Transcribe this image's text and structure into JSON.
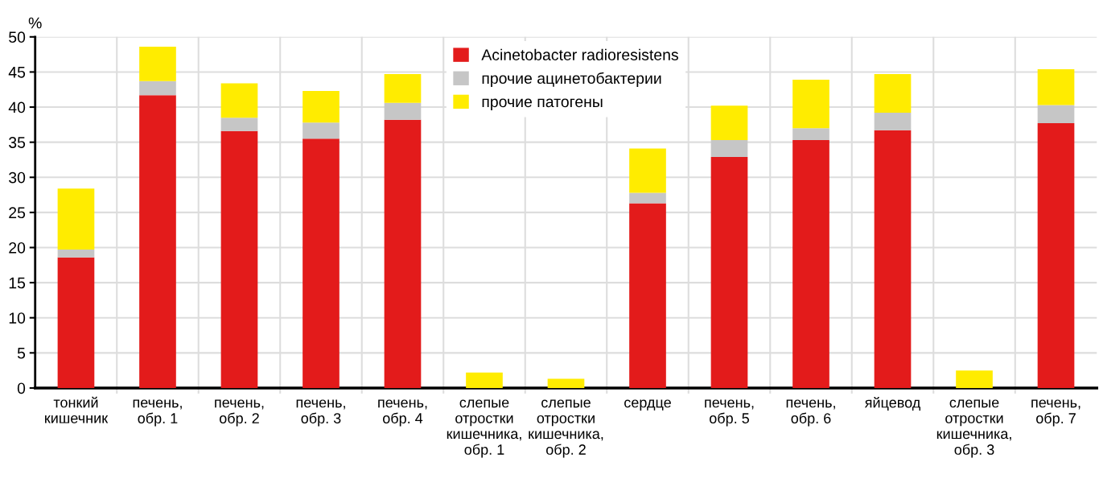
{
  "chart_data": {
    "type": "bar",
    "stacked": true,
    "ylabel": "%",
    "categories": [
      "тонкий\nкишечник",
      "печень,\nобр. 1",
      "печень,\nобр. 2",
      "печень,\nобр. 3",
      "печень,\nобр. 4",
      "слепые\nотростки\nкишечника,\nобр. 1",
      "слепые\nотростки\nкишечника,\nобр. 2",
      "сердце",
      "печень,\nобр. 5",
      "печень,\nобр. 6",
      "яйцевод",
      "слепые\nотростки\nкишечника,\nобр. 3",
      "печень,\nобр. 7"
    ],
    "series": [
      {
        "name": "Acinetobacter radioresistens",
        "color": "#e31b1b",
        "values": [
          18.6,
          41.7,
          36.6,
          35.5,
          38.2,
          0,
          0,
          26.3,
          32.9,
          35.3,
          36.7,
          0,
          37.7
        ]
      },
      {
        "name": "прочие ацинетобактерии",
        "color": "#c6c6c6",
        "values": [
          1.1,
          2.0,
          1.9,
          2.3,
          2.4,
          0,
          0,
          1.5,
          2.4,
          1.7,
          2.5,
          0,
          2.6
        ]
      },
      {
        "name": "прочие патогены",
        "color": "#ffec00",
        "values": [
          8.7,
          4.9,
          4.9,
          4.5,
          4.1,
          2.2,
          1.3,
          6.3,
          4.9,
          6.9,
          5.5,
          2.5,
          5.1
        ]
      }
    ],
    "ylim": [
      0,
      50
    ],
    "yticks": [
      0,
      5,
      10,
      15,
      20,
      25,
      30,
      35,
      40,
      45,
      50
    ],
    "grid": true,
    "legend": "top"
  }
}
